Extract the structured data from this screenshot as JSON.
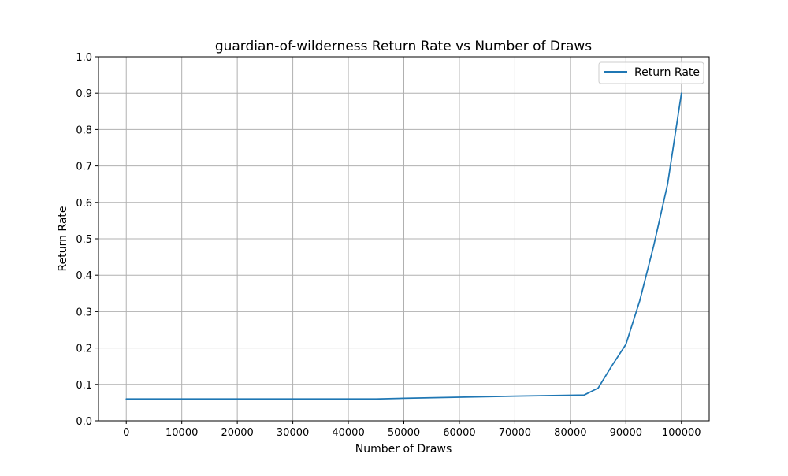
{
  "chart_data": {
    "type": "line",
    "title": "guardian-of-wilderness Return Rate vs Number of Draws",
    "xlabel": "Number of Draws",
    "ylabel": "Return Rate",
    "xlim": [
      -5000,
      105000
    ],
    "ylim": [
      0,
      1.0
    ],
    "x_ticks": [
      0,
      10000,
      20000,
      30000,
      40000,
      50000,
      60000,
      70000,
      80000,
      90000,
      100000
    ],
    "y_ticks": [
      0,
      0.1,
      0.2,
      0.3,
      0.4,
      0.5,
      0.6,
      0.7,
      0.8,
      0.9,
      1.0
    ],
    "x_tick_labels": [
      "0",
      "10000",
      "20000",
      "30000",
      "40000",
      "50000",
      "60000",
      "70000",
      "80000",
      "90000",
      "100000"
    ],
    "y_tick_labels": [
      "0.0",
      "0.1",
      "0.2",
      "0.3",
      "0.4",
      "0.5",
      "0.6",
      "0.7",
      "0.8",
      "0.9",
      "1.0"
    ],
    "grid": true,
    "legend_position": "top-right",
    "series": [
      {
        "name": "Return Rate",
        "color": "#1f77b4",
        "x": [
          0,
          45000,
          50000,
          60000,
          70000,
          82500,
          85000,
          87500,
          90000,
          92500,
          95000,
          97500,
          100000
        ],
        "y": [
          0.06,
          0.06,
          0.062,
          0.065,
          0.068,
          0.071,
          0.09,
          0.152,
          0.21,
          0.33,
          0.48,
          0.65,
          0.9
        ]
      }
    ]
  }
}
